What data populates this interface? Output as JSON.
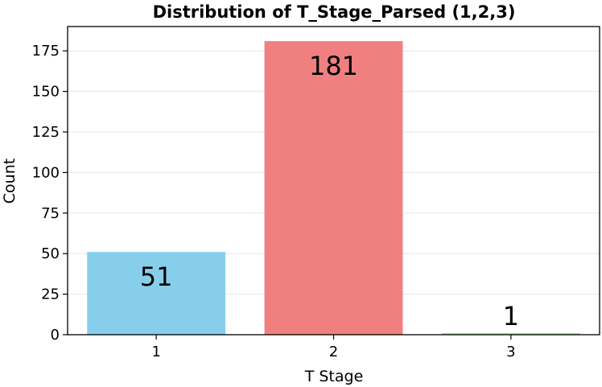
{
  "chart_data": {
    "type": "bar",
    "title": "Distribution of T_Stage_Parsed (1,2,3)",
    "xlabel": "T Stage",
    "ylabel": "Count",
    "categories": [
      "1",
      "2",
      "3"
    ],
    "values": [
      51,
      181,
      1
    ],
    "data_labels": [
      "51",
      "181",
      "1"
    ],
    "colors": [
      "#87ceeb",
      "#f08080",
      "#90ee90"
    ],
    "ylim": [
      0,
      190
    ],
    "yticks": [
      0,
      25,
      50,
      75,
      100,
      125,
      150,
      175
    ],
    "grid": true,
    "grid_axis": "y",
    "legend": "none"
  }
}
